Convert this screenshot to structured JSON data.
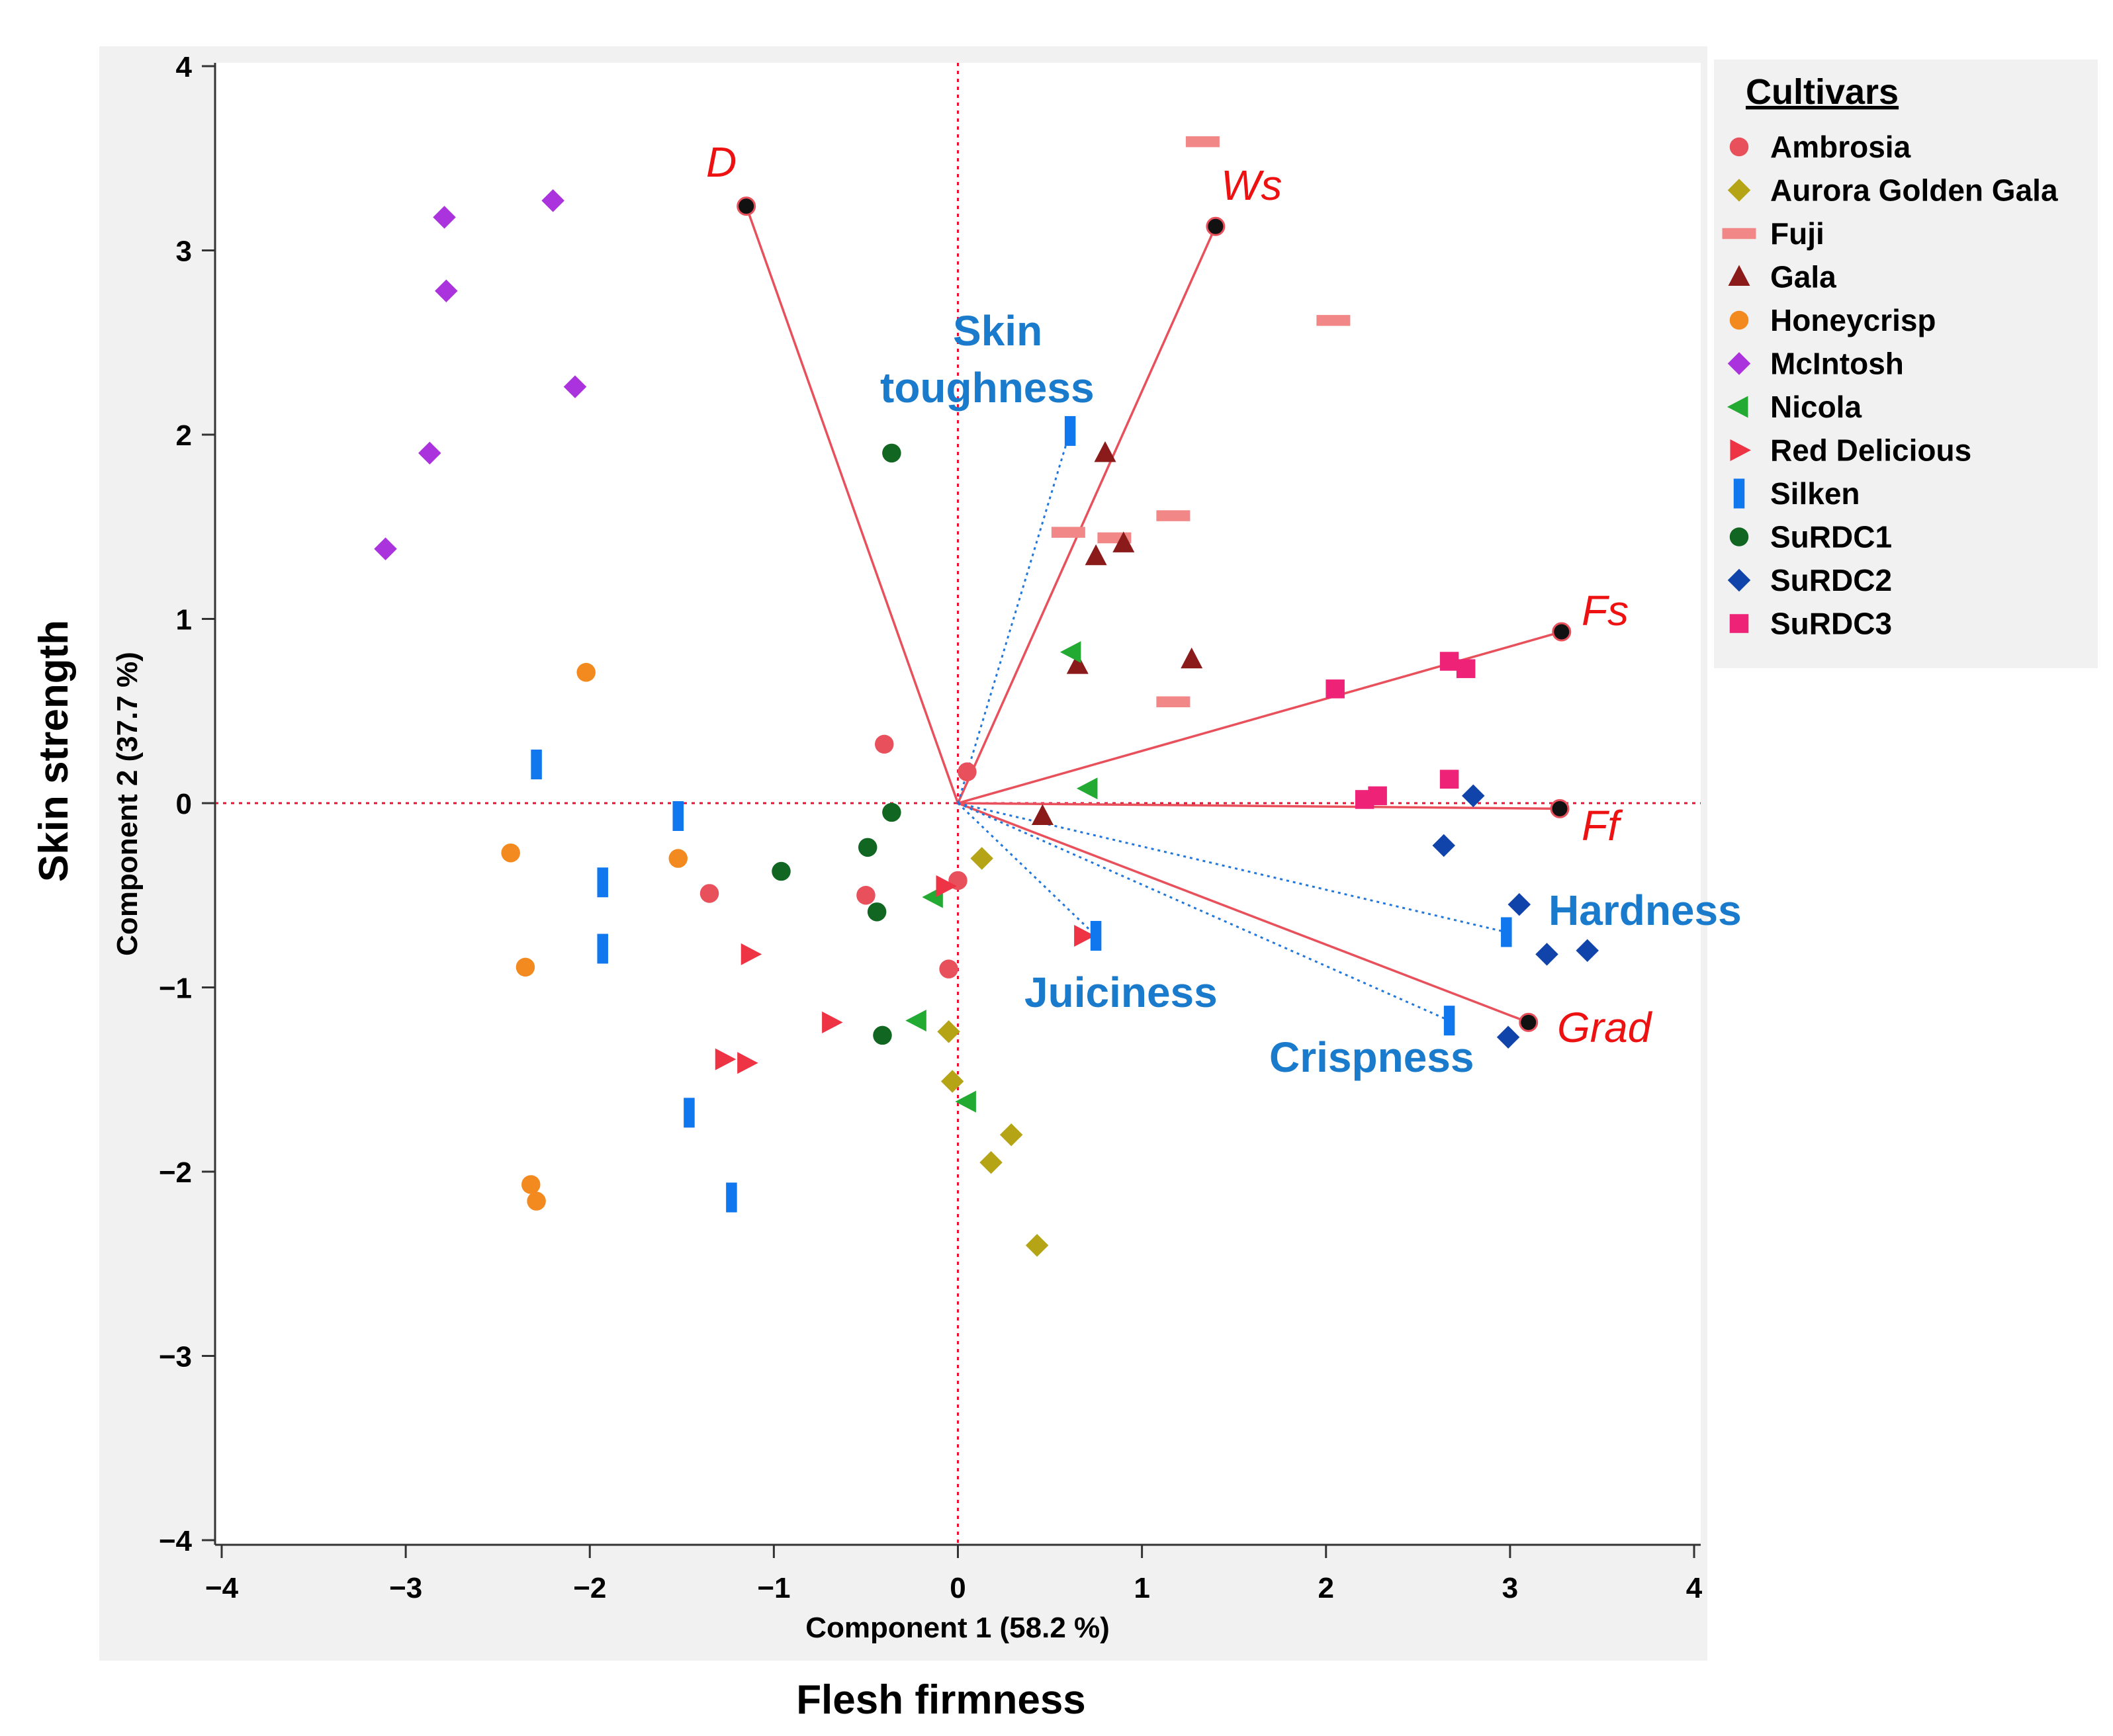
{
  "chart_data": {
    "type": "scatter",
    "subtype": "biplot",
    "xlabel": "Component 1  (58.2 %)",
    "ylabel": "Component 2  (37.7 %)",
    "xtitle": "Flesh firmness",
    "ytitle": "Skin strength",
    "xlim": [
      -4,
      4
    ],
    "ylim": [
      -4,
      4
    ],
    "xticks": [
      "−4",
      "−3",
      "−2",
      "−1",
      "0",
      "1",
      "2",
      "3",
      "4"
    ],
    "yticks": [
      "4",
      "3",
      "2",
      "1",
      "0",
      "−1",
      "−2",
      "−3",
      "−4"
    ],
    "reference_lines": {
      "x": 0,
      "y": 0
    },
    "legend": {
      "title": "Cultivars",
      "position": "right"
    },
    "series": [
      {
        "name": "Ambrosia",
        "marker": "circle",
        "color": "#e8505b",
        "points": [
          [
            -0.4,
            0.32
          ],
          [
            0.05,
            0.17
          ],
          [
            -1.35,
            -0.49
          ],
          [
            -0.5,
            -0.5
          ],
          [
            0.0,
            -0.42
          ],
          [
            -0.05,
            -0.9
          ]
        ]
      },
      {
        "name": "Aurora Golden Gala",
        "marker": "diamond",
        "color": "#b5a516",
        "points": [
          [
            0.13,
            -0.3
          ],
          [
            -0.05,
            -1.24
          ],
          [
            -0.03,
            -1.51
          ],
          [
            0.18,
            -1.95
          ],
          [
            0.29,
            -1.8
          ],
          [
            0.43,
            -2.4
          ]
        ]
      },
      {
        "name": "Fuji",
        "marker": "dash",
        "color": "#f28787",
        "points": [
          [
            1.33,
            3.59
          ],
          [
            2.04,
            2.62
          ],
          [
            0.6,
            1.47
          ],
          [
            0.85,
            1.44
          ],
          [
            1.17,
            1.56
          ],
          [
            1.17,
            0.55
          ]
        ]
      },
      {
        "name": "Gala",
        "marker": "triangle-up",
        "color": "#8b1a1a",
        "points": [
          [
            0.8,
            1.9
          ],
          [
            0.75,
            1.34
          ],
          [
            0.9,
            1.41
          ],
          [
            0.65,
            0.75
          ],
          [
            1.27,
            0.78
          ],
          [
            0.46,
            -0.07
          ]
        ]
      },
      {
        "name": "Honeycrisp",
        "marker": "circle",
        "color": "#f28a1f",
        "points": [
          [
            -2.02,
            0.71
          ],
          [
            -2.43,
            -0.27
          ],
          [
            -1.52,
            -0.3
          ],
          [
            -2.35,
            -0.89
          ],
          [
            -2.32,
            -2.07
          ],
          [
            -2.29,
            -2.16
          ]
        ]
      },
      {
        "name": "McIntosh",
        "marker": "diamond",
        "color": "#aa33dd",
        "points": [
          [
            -2.2,
            3.27
          ],
          [
            -2.79,
            3.18
          ],
          [
            -2.78,
            2.78
          ],
          [
            -2.08,
            2.26
          ],
          [
            -2.87,
            1.9
          ],
          [
            -3.11,
            1.38
          ]
        ]
      },
      {
        "name": "Nicola",
        "marker": "triangle-left",
        "color": "#22aa33",
        "points": [
          [
            0.62,
            0.82
          ],
          [
            0.71,
            0.08
          ],
          [
            -0.13,
            -0.51
          ],
          [
            -0.22,
            -1.18
          ],
          [
            0.05,
            -1.62
          ]
        ]
      },
      {
        "name": "Red Delicious",
        "marker": "triangle-right",
        "color": "#ee3344",
        "points": [
          [
            -0.07,
            -0.45
          ],
          [
            0.68,
            -0.72
          ],
          [
            -1.13,
            -0.82
          ],
          [
            -0.69,
            -1.19
          ],
          [
            -1.27,
            -1.39
          ],
          [
            -1.15,
            -1.41
          ]
        ]
      },
      {
        "name": "Silken",
        "marker": "bar",
        "color": "#1177ee",
        "points": [
          [
            0.61,
            2.02
          ],
          [
            -2.29,
            0.21
          ],
          [
            -1.52,
            -0.07
          ],
          [
            -1.93,
            -0.43
          ],
          [
            -1.93,
            -0.79
          ],
          [
            0.75,
            -0.72
          ],
          [
            2.98,
            -0.7
          ],
          [
            2.67,
            -1.18
          ],
          [
            -1.46,
            -1.68
          ],
          [
            -1.23,
            -2.14
          ]
        ]
      },
      {
        "name": "SuRDC1",
        "marker": "circle",
        "color": "#116622",
        "points": [
          [
            -0.36,
            1.9
          ],
          [
            -0.36,
            -0.05
          ],
          [
            -0.49,
            -0.24
          ],
          [
            -0.96,
            -0.37
          ],
          [
            -0.44,
            -0.59
          ],
          [
            -0.41,
            -1.26
          ]
        ]
      },
      {
        "name": "SuRDC2",
        "marker": "diamond",
        "color": "#1144aa",
        "points": [
          [
            2.8,
            0.04
          ],
          [
            2.64,
            -0.23
          ],
          [
            3.05,
            -0.55
          ],
          [
            3.2,
            -0.82
          ],
          [
            3.42,
            -0.8
          ],
          [
            2.99,
            -1.27
          ]
        ]
      },
      {
        "name": "SuRDC3",
        "marker": "square",
        "color": "#ee2277",
        "points": [
          [
            2.05,
            0.62
          ],
          [
            2.67,
            0.77
          ],
          [
            2.76,
            0.73
          ],
          [
            2.67,
            0.13
          ],
          [
            2.21,
            0.02
          ],
          [
            2.28,
            0.04
          ]
        ]
      }
    ],
    "vectors": [
      {
        "label": "D",
        "x": -1.15,
        "y": 3.24,
        "style": "solid",
        "color": "#e8505b"
      },
      {
        "label": "Ws",
        "x": 1.4,
        "y": 3.13,
        "style": "solid",
        "color": "#e8505b"
      },
      {
        "label": "Fs",
        "x": 3.28,
        "y": 0.93,
        "style": "solid",
        "color": "#e8505b"
      },
      {
        "label": "Ff",
        "x": 3.27,
        "y": -0.03,
        "style": "solid",
        "color": "#e8505b"
      },
      {
        "label": "Grad",
        "x": 3.1,
        "y": -1.19,
        "style": "solid",
        "color": "#e8505b"
      },
      {
        "label": "Skin toughness",
        "x": 0.61,
        "y": 2.02,
        "style": "dotted",
        "color": "#2277dd"
      },
      {
        "label": "Juiciness",
        "x": 0.75,
        "y": -0.72,
        "style": "dotted",
        "color": "#2277dd"
      },
      {
        "label": "Hardness",
        "x": 2.98,
        "y": -0.7,
        "style": "dotted",
        "color": "#2277dd"
      },
      {
        "label": "Crispness",
        "x": 2.67,
        "y": -1.18,
        "style": "dotted",
        "color": "#2277dd"
      }
    ],
    "annotations": [
      {
        "text": "D",
        "color": "#ee1111",
        "style": "italic"
      },
      {
        "text": "Ws",
        "color": "#ee1111",
        "style": "italic"
      },
      {
        "text": "Fs",
        "color": "#ee1111",
        "style": "italic"
      },
      {
        "text": "Ff",
        "color": "#ee1111",
        "style": "italic"
      },
      {
        "text": "Grad",
        "color": "#ee1111",
        "style": "italic"
      },
      {
        "text": "Skin",
        "color": "#1a7acc",
        "style": "bold"
      },
      {
        "text": "toughness",
        "color": "#1a7acc",
        "style": "bold"
      },
      {
        "text": "Juiciness",
        "color": "#1a7acc",
        "style": "bold"
      },
      {
        "text": "Hardness",
        "color": "#1a7acc",
        "style": "bold"
      },
      {
        "text": "Crispness",
        "color": "#1a7acc",
        "style": "bold"
      }
    ]
  }
}
